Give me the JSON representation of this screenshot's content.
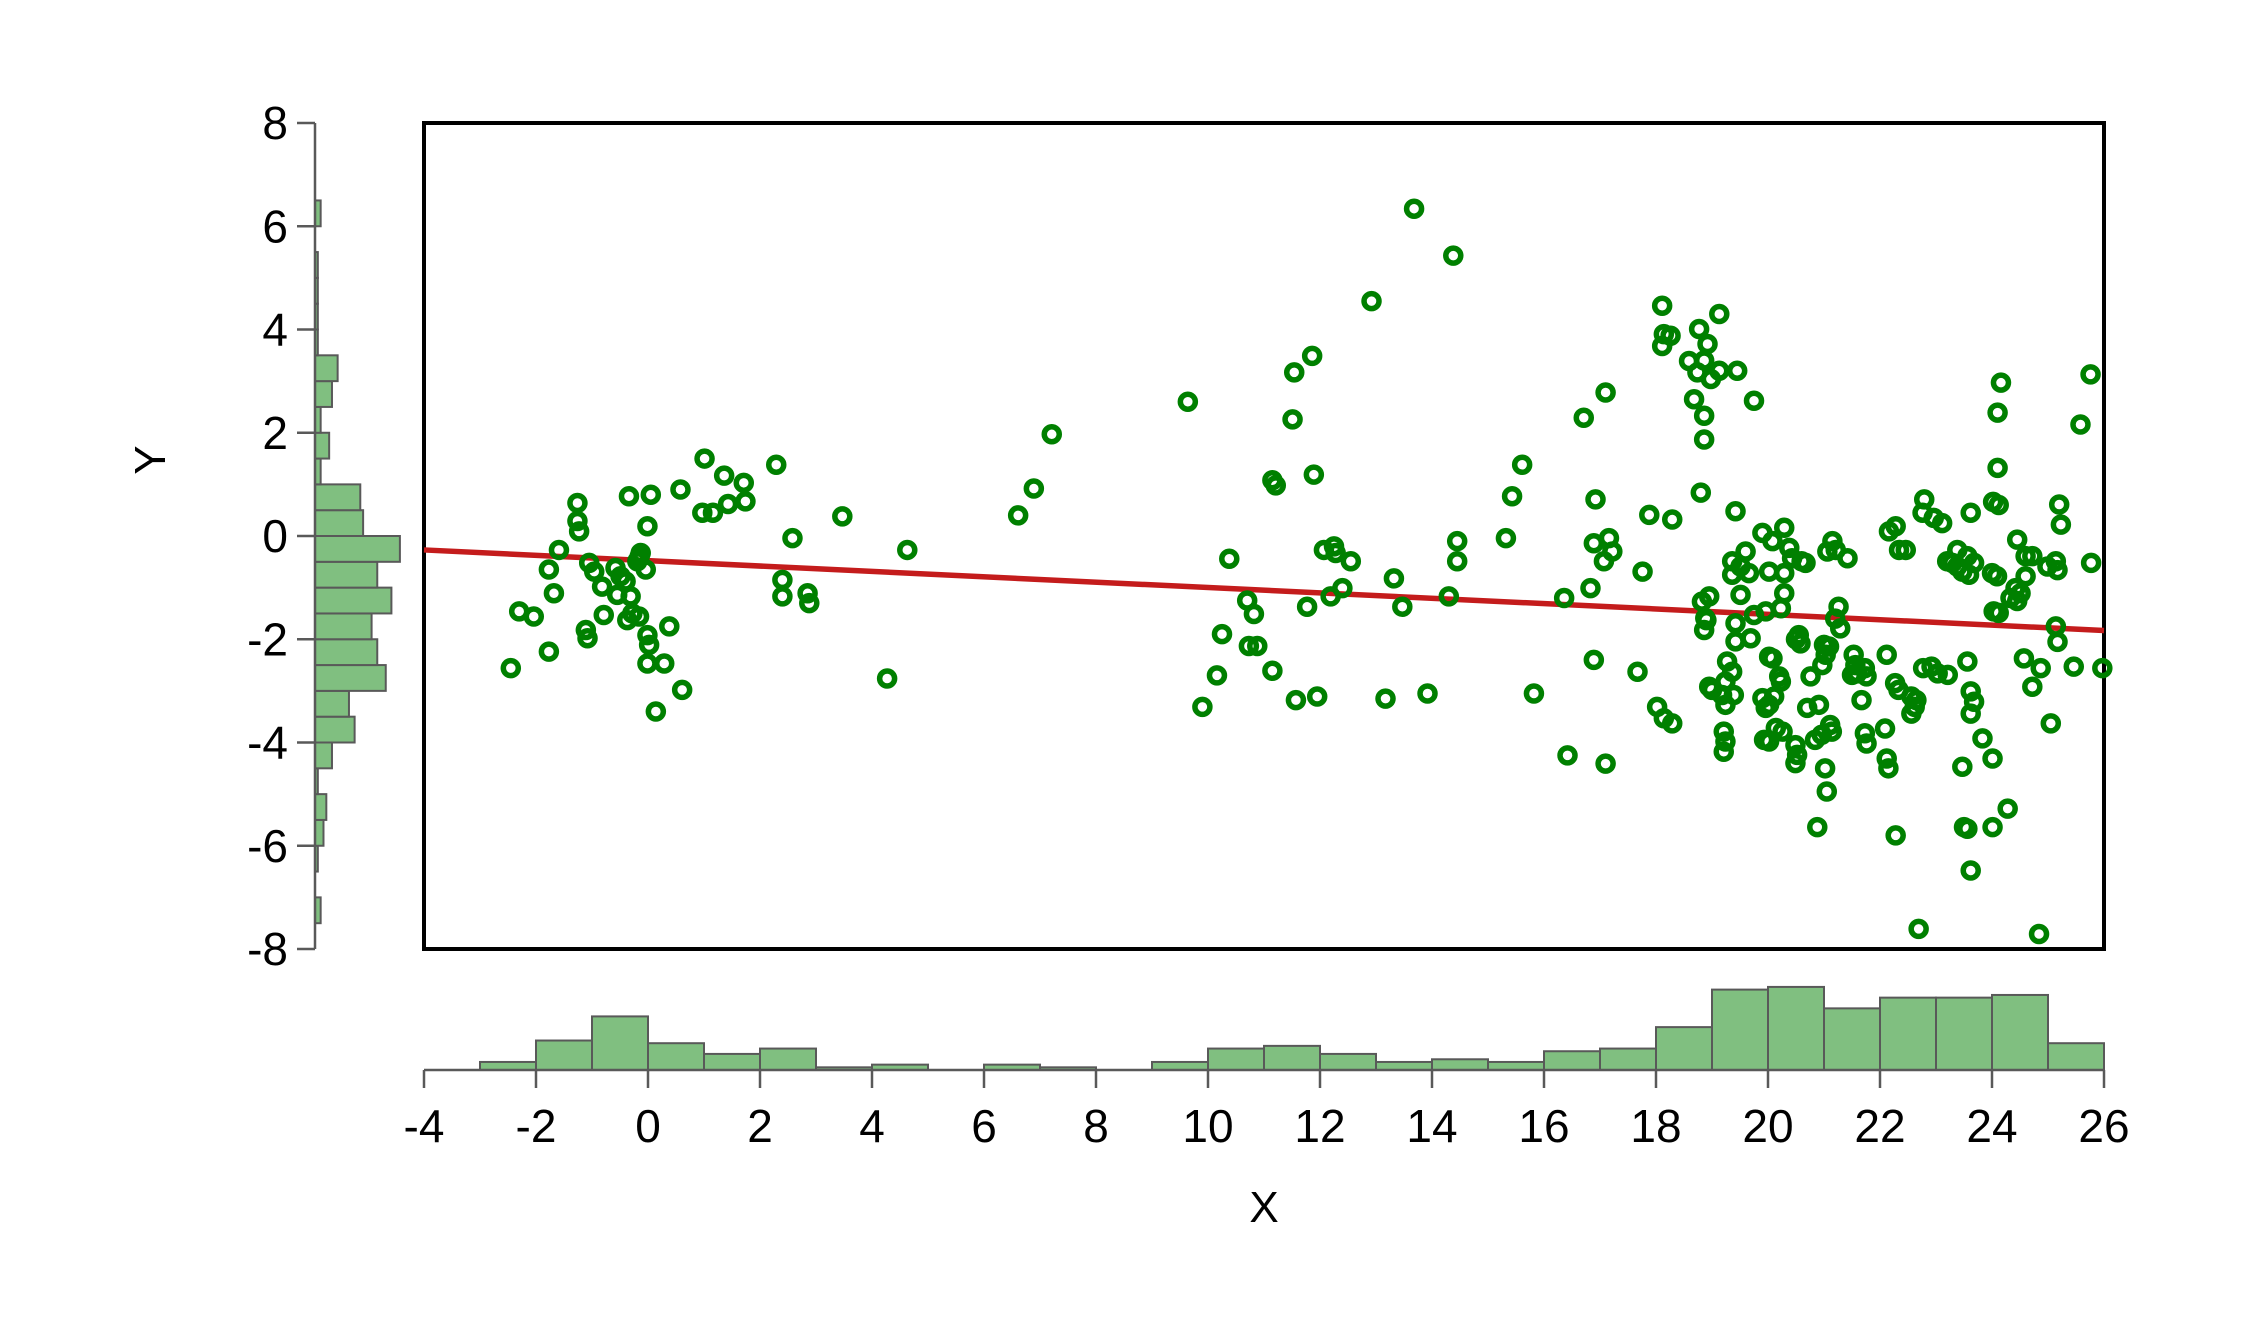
{
  "chart_data": {
    "type": "scatter",
    "title": "",
    "xlabel": "X",
    "ylabel": "Y",
    "xlim": [
      -4,
      26
    ],
    "ylim": [
      -8,
      8
    ],
    "x_ticks": [
      -4,
      -2,
      0,
      2,
      4,
      6,
      8,
      10,
      12,
      14,
      16,
      18,
      20,
      22,
      24,
      26
    ],
    "y_ticks": [
      -8,
      -6,
      -4,
      -2,
      0,
      2,
      4,
      6,
      8
    ],
    "grid": false,
    "legend": null,
    "colors": {
      "point_stroke": "#008000",
      "fit_line": "#C41C1C",
      "hist_fill": "#80BF80",
      "hist_border": "#595959",
      "axis_line": "#595959",
      "frame": "#000000",
      "background": "#FFFFFF"
    },
    "fit_line": {
      "x_start": -4,
      "y_start": -0.27,
      "x_end": 26,
      "y_end": -1.83
    },
    "x_histogram": {
      "bin_start": -3,
      "bin_width": 1,
      "counts": [
        3,
        11,
        20,
        10,
        6,
        8,
        1,
        2,
        0,
        2,
        1,
        0,
        3,
        8,
        9,
        6,
        3,
        4,
        3,
        7,
        8,
        16,
        30,
        31,
        23,
        27,
        27,
        28,
        10
      ]
    },
    "y_histogram": {
      "bin_start": -7.5,
      "bin_width": 0.5,
      "counts": [
        2,
        0,
        1,
        3,
        4,
        1,
        6,
        14,
        12,
        25,
        22,
        20,
        27,
        22,
        30,
        17,
        16,
        2,
        5,
        2,
        6,
        8,
        1,
        1,
        1,
        1,
        0,
        2
      ]
    },
    "points": [
      [
        1.01,
        1.5
      ],
      [
        1.36,
        1.17
      ],
      [
        2.29,
        1.38
      ],
      [
        1.71,
        1.03
      ],
      [
        1.74,
        0.67
      ],
      [
        1.43,
        0.62
      ],
      [
        0.97,
        0.45
      ],
      [
        1.16,
        0.45
      ],
      [
        -0.34,
        0.77
      ],
      [
        0.05,
        0.8
      ],
      [
        0.58,
        0.9
      ],
      [
        -1.26,
        0.64
      ],
      [
        -1.26,
        0.29
      ],
      [
        -1.23,
        0.09
      ],
      [
        -0.01,
        0.19
      ],
      [
        -1.59,
        -0.27
      ],
      [
        -1.05,
        -0.52
      ],
      [
        -0.96,
        -0.69
      ],
      [
        -0.58,
        -0.62
      ],
      [
        -0.49,
        -0.78
      ],
      [
        -0.19,
        -0.49
      ],
      [
        -0.13,
        -0.33
      ],
      [
        -0.15,
        -0.4
      ],
      [
        -0.04,
        -0.65
      ],
      [
        -0.4,
        -0.88
      ],
      [
        -0.82,
        -0.98
      ],
      [
        -1.77,
        -0.65
      ],
      [
        -1.68,
        -1.11
      ],
      [
        -0.55,
        -1.14
      ],
      [
        -0.31,
        -1.17
      ],
      [
        -0.28,
        -1.5
      ],
      [
        -0.37,
        -1.63
      ],
      [
        -0.16,
        -1.56
      ],
      [
        -0.79,
        -1.53
      ],
      [
        -1.11,
        -1.82
      ],
      [
        -1.08,
        -1.98
      ],
      [
        -2.3,
        -1.46
      ],
      [
        -2.04,
        -1.56
      ],
      [
        -0.01,
        -1.92
      ],
      [
        0.38,
        -1.75
      ],
      [
        0.02,
        -2.11
      ],
      [
        -1.77,
        -2.24
      ],
      [
        -2.45,
        -2.56
      ],
      [
        -0.01,
        -2.47
      ],
      [
        0.29,
        -2.47
      ],
      [
        0.61,
        -2.98
      ],
      [
        0.14,
        -3.4
      ],
      [
        2.4,
        -0.85
      ],
      [
        2.4,
        -1.17
      ],
      [
        2.85,
        -1.11
      ],
      [
        2.88,
        -1.3
      ],
      [
        2.58,
        -0.04
      ],
      [
        3.47,
        0.38
      ],
      [
        9.64,
        2.6
      ],
      [
        7.21,
        1.97
      ],
      [
        6.89,
        0.92
      ],
      [
        6.61,
        0.4
      ],
      [
        4.63,
        -0.27
      ],
      [
        10.38,
        -0.44
      ],
      [
        11.15,
        1.08
      ],
      [
        11.21,
        0.98
      ],
      [
        10.7,
        -1.25
      ],
      [
        10.82,
        -1.51
      ],
      [
        10.25,
        -1.9
      ],
      [
        10.73,
        -2.13
      ],
      [
        10.88,
        -2.13
      ],
      [
        10.16,
        -2.7
      ],
      [
        11.15,
        -2.61
      ],
      [
        4.27,
        -2.76
      ],
      [
        9.9,
        -3.31
      ],
      [
        11.57,
        -3.18
      ],
      [
        11.95,
        -3.11
      ],
      [
        13.17,
        -3.15
      ],
      [
        13.92,
        -3.05
      ],
      [
        15.82,
        -3.05
      ],
      [
        16.42,
        -4.25
      ],
      [
        17.1,
        -4.41
      ],
      [
        18.02,
        -3.31
      ],
      [
        18.14,
        -3.53
      ],
      [
        18.29,
        -3.63
      ],
      [
        13.68,
        6.34
      ],
      [
        14.38,
        5.43
      ],
      [
        12.92,
        4.55
      ],
      [
        11.86,
        3.49
      ],
      [
        11.54,
        3.17
      ],
      [
        11.51,
        2.26
      ],
      [
        11.89,
        1.19
      ],
      [
        18.11,
        4.46
      ],
      [
        18.14,
        3.91
      ],
      [
        18.26,
        3.88
      ],
      [
        18.11,
        3.68
      ],
      [
        18.77,
        4.01
      ],
      [
        18.92,
        3.72
      ],
      [
        18.59,
        3.39
      ],
      [
        18.74,
        3.17
      ],
      [
        18.68,
        2.65
      ],
      [
        17.1,
        2.78
      ],
      [
        16.71,
        2.29
      ],
      [
        15.61,
        1.38
      ],
      [
        15.43,
        0.77
      ],
      [
        16.92,
        0.71
      ],
      [
        17.88,
        0.41
      ],
      [
        18.29,
        0.32
      ],
      [
        18.8,
        0.84
      ],
      [
        15.32,
        -0.04
      ],
      [
        14.45,
        -0.1
      ],
      [
        14.45,
        -0.49
      ],
      [
        16.89,
        -0.14
      ],
      [
        17.16,
        -0.04
      ],
      [
        17.22,
        -0.3
      ],
      [
        17.07,
        -0.49
      ],
      [
        17.76,
        -0.69
      ],
      [
        12.07,
        -0.27
      ],
      [
        12.25,
        -0.2
      ],
      [
        12.28,
        -0.33
      ],
      [
        12.55,
        -0.49
      ],
      [
        13.32,
        -0.82
      ],
      [
        12.4,
        -1.01
      ],
      [
        12.19,
        -1.17
      ],
      [
        11.77,
        -1.37
      ],
      [
        13.47,
        -1.37
      ],
      [
        14.3,
        -1.17
      ],
      [
        16.36,
        -1.2
      ],
      [
        16.83,
        -1.01
      ],
      [
        18.82,
        -1.27
      ],
      [
        18.95,
        -1.17
      ],
      [
        18.88,
        -1.59
      ],
      [
        18.9,
        -1.63
      ],
      [
        18.86,
        -1.82
      ],
      [
        16.89,
        -2.4
      ],
      [
        17.67,
        -2.63
      ],
      [
        19.13,
        4.3
      ],
      [
        18.86,
        3.4
      ],
      [
        18.98,
        3.04
      ],
      [
        19.13,
        3.2
      ],
      [
        19.45,
        3.2
      ],
      [
        19.75,
        2.62
      ],
      [
        18.86,
        2.33
      ],
      [
        18.86,
        1.87
      ],
      [
        24.16,
        2.97
      ],
      [
        25.76,
        3.13
      ],
      [
        24.1,
        2.39
      ],
      [
        25.58,
        2.16
      ],
      [
        24.1,
        1.32
      ],
      [
        24.02,
        0.66
      ],
      [
        24.12,
        0.6
      ],
      [
        22.79,
        0.71
      ],
      [
        22.76,
        0.45
      ],
      [
        22.96,
        0.35
      ],
      [
        23.11,
        0.25
      ],
      [
        23.62,
        0.45
      ],
      [
        19.42,
        0.48
      ],
      [
        20.29,
        0.16
      ],
      [
        19.9,
        0.06
      ],
      [
        20.08,
        -0.1
      ],
      [
        22.16,
        0.09
      ],
      [
        22.28,
        0.19
      ],
      [
        22.34,
        -0.27
      ],
      [
        22.46,
        -0.27
      ],
      [
        21.15,
        -0.1
      ],
      [
        21.21,
        -0.27
      ],
      [
        21.06,
        -0.3
      ],
      [
        21.42,
        -0.43
      ],
      [
        19.6,
        -0.3
      ],
      [
        19.36,
        -0.49
      ],
      [
        19.51,
        -0.59
      ],
      [
        20.38,
        -0.23
      ],
      [
        20.43,
        -0.43
      ],
      [
        20.67,
        -0.52
      ],
      [
        25.2,
        0.61
      ],
      [
        25.23,
        0.22
      ],
      [
        24.45,
        -0.07
      ],
      [
        24.6,
        -0.39
      ],
      [
        24.72,
        -0.39
      ],
      [
        23.38,
        -0.27
      ],
      [
        23.56,
        -0.39
      ],
      [
        23.68,
        -0.52
      ],
      [
        24.99,
        -0.59
      ],
      [
        19.36,
        -0.75
      ],
      [
        19.66,
        -0.72
      ],
      [
        20.02,
        -0.69
      ],
      [
        20.29,
        -0.72
      ],
      [
        20.6,
        -0.49
      ],
      [
        19.51,
        -1.14
      ],
      [
        19.75,
        -1.53
      ],
      [
        19.96,
        -1.46
      ],
      [
        20.23,
        -1.4
      ],
      [
        20.29,
        -1.11
      ],
      [
        19.42,
        -1.69
      ],
      [
        19.69,
        -1.98
      ],
      [
        19.42,
        -2.04
      ],
      [
        20.55,
        -1.92
      ],
      [
        20.58,
        -2.08
      ],
      [
        20.5,
        -2.0
      ],
      [
        21.0,
        -2.11
      ],
      [
        21.09,
        -2.14
      ],
      [
        21.03,
        -2.3
      ],
      [
        20.97,
        -2.5
      ],
      [
        20.02,
        -2.34
      ],
      [
        20.08,
        -2.37
      ],
      [
        19.27,
        -2.43
      ],
      [
        19.36,
        -2.63
      ],
      [
        19.24,
        -2.82
      ],
      [
        19.0,
        -2.98
      ],
      [
        19.18,
        -3.08
      ],
      [
        19.39,
        -3.08
      ],
      [
        19.24,
        -3.27
      ],
      [
        18.95,
        -2.92
      ],
      [
        19.9,
        -3.14
      ],
      [
        20.11,
        -3.11
      ],
      [
        20.02,
        -3.27
      ],
      [
        19.96,
        -3.33
      ],
      [
        20.23,
        -2.82
      ],
      [
        20.2,
        -2.72
      ],
      [
        20.76,
        -2.72
      ],
      [
        20.7,
        -3.33
      ],
      [
        20.91,
        -3.27
      ],
      [
        20.14,
        -3.72
      ],
      [
        20.26,
        -3.79
      ],
      [
        19.93,
        -3.95
      ],
      [
        20.02,
        -3.98
      ],
      [
        19.21,
        -3.79
      ],
      [
        19.24,
        -3.98
      ],
      [
        19.21,
        -4.18
      ],
      [
        20.49,
        -4.05
      ],
      [
        20.52,
        -4.24
      ],
      [
        20.49,
        -4.4
      ],
      [
        20.84,
        -3.95
      ],
      [
        20.96,
        -3.85
      ],
      [
        21.11,
        -3.66
      ],
      [
        21.14,
        -3.79
      ],
      [
        21.02,
        -4.5
      ],
      [
        21.05,
        -4.95
      ],
      [
        21.26,
        -1.37
      ],
      [
        21.29,
        -1.79
      ],
      [
        21.2,
        -1.6
      ],
      [
        21.53,
        -2.3
      ],
      [
        21.56,
        -2.5
      ],
      [
        21.5,
        -2.69
      ],
      [
        21.59,
        -2.66
      ],
      [
        21.73,
        -2.56
      ],
      [
        21.76,
        -2.72
      ],
      [
        22.12,
        -2.3
      ],
      [
        21.67,
        -3.18
      ],
      [
        21.73,
        -3.82
      ],
      [
        21.76,
        -4.02
      ],
      [
        22.09,
        -3.73
      ],
      [
        22.12,
        -4.31
      ],
      [
        22.15,
        -4.5
      ],
      [
        22.27,
        -2.85
      ],
      [
        22.33,
        -2.98
      ],
      [
        22.56,
        -3.11
      ],
      [
        22.65,
        -3.18
      ],
      [
        22.62,
        -3.31
      ],
      [
        22.56,
        -3.44
      ],
      [
        22.77,
        -2.56
      ],
      [
        22.92,
        -2.53
      ],
      [
        23.03,
        -2.66
      ],
      [
        23.21,
        -2.69
      ],
      [
        23.56,
        -2.43
      ],
      [
        23.62,
        -3.01
      ],
      [
        23.68,
        -3.21
      ],
      [
        23.62,
        -3.44
      ],
      [
        23.83,
        -3.92
      ],
      [
        24.01,
        -4.31
      ],
      [
        23.47,
        -4.47
      ],
      [
        24.28,
        -5.28
      ],
      [
        24.01,
        -5.64
      ],
      [
        23.56,
        -5.67
      ],
      [
        23.5,
        -5.64
      ],
      [
        20.88,
        -5.64
      ],
      [
        22.28,
        -5.8
      ],
      [
        23.62,
        -6.48
      ],
      [
        22.69,
        -7.61
      ],
      [
        24.84,
        -7.71
      ],
      [
        25.05,
        -3.63
      ],
      [
        25.14,
        -1.75
      ],
      [
        25.17,
        -2.05
      ],
      [
        24.57,
        -2.37
      ],
      [
        24.87,
        -2.56
      ],
      [
        24.72,
        -2.92
      ],
      [
        25.46,
        -2.53
      ],
      [
        24.6,
        -0.78
      ],
      [
        24.42,
        -1.01
      ],
      [
        24.51,
        -1.11
      ],
      [
        24.33,
        -1.2
      ],
      [
        24.45,
        -1.26
      ],
      [
        24.0,
        -0.72
      ],
      [
        24.09,
        -0.78
      ],
      [
        25.14,
        -0.49
      ],
      [
        25.17,
        -0.66
      ],
      [
        24.03,
        -1.46
      ],
      [
        24.12,
        -1.49
      ],
      [
        23.2,
        -0.49
      ],
      [
        23.29,
        -0.52
      ],
      [
        23.38,
        -0.59
      ],
      [
        23.47,
        -0.69
      ],
      [
        23.59,
        -0.75
      ],
      [
        25.77,
        -0.52
      ],
      [
        25.97,
        -2.56
      ]
    ]
  }
}
